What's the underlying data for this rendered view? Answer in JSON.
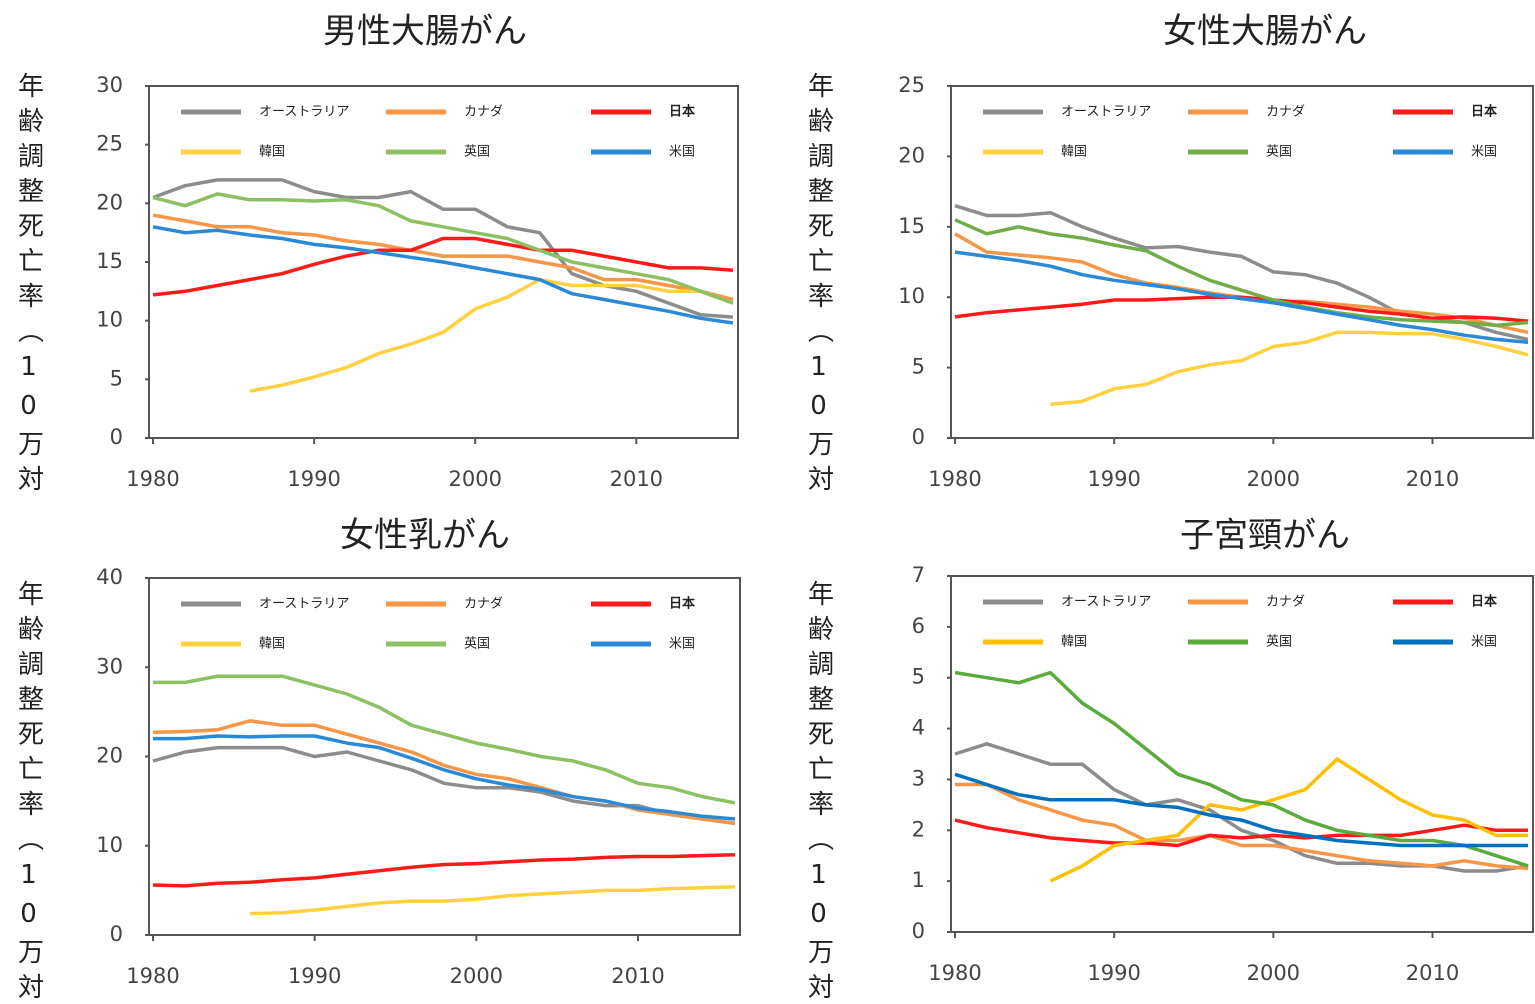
{
  "chart_data": [
    {
      "type": "line",
      "title": "男性大腸がん",
      "ylabel": "年齢調整死亡率（10万対",
      "x": [
        1980,
        1982,
        1984,
        1986,
        1988,
        1990,
        1992,
        1994,
        1996,
        1998,
        2000,
        2002,
        2004,
        2006,
        2008,
        2010,
        2012,
        2014,
        2016
      ],
      "xlim": [
        1980,
        2016
      ],
      "xticks": [
        1980,
        1990,
        2000,
        2010
      ],
      "ylim": [
        0,
        30
      ],
      "yticks": [
        0,
        5,
        10,
        15,
        20,
        25,
        30
      ],
      "series": [
        {
          "name": "オーストラリア",
          "color": "#8c8c8c",
          "values": [
            20.5,
            21.5,
            22,
            22,
            22,
            21,
            20.5,
            20.5,
            21,
            19.5,
            19.5,
            18,
            17.5,
            14,
            13,
            12.5,
            11.5,
            10.5,
            10.3
          ]
        },
        {
          "name": "カナダ",
          "color": "#f79646",
          "values": [
            19,
            18.5,
            18,
            18,
            17.5,
            17.3,
            16.8,
            16.5,
            16,
            15.5,
            15.5,
            15.5,
            15,
            14.5,
            13.5,
            13.5,
            13,
            12.5,
            11.8
          ]
        },
        {
          "name": "日本",
          "color": "#ff1a1a",
          "values": [
            12.2,
            12.5,
            13,
            13.5,
            14,
            14.8,
            15.5,
            16,
            16,
            17,
            17,
            16.5,
            16,
            16,
            15.5,
            15,
            14.5,
            14.5,
            14.3
          ]
        },
        {
          "name": "韓国",
          "color": "#ffd040",
          "values": [
            null,
            null,
            null,
            4,
            4.5,
            5.2,
            6,
            7.2,
            8,
            9,
            11,
            12,
            13.5,
            13,
            13,
            13,
            12.5,
            12.5,
            11.5
          ]
        },
        {
          "name": "英国",
          "color": "#8cc163",
          "values": [
            20.5,
            19.8,
            20.8,
            20.3,
            20.3,
            20.2,
            20.3,
            19.8,
            18.5,
            18,
            17.5,
            17,
            16,
            15,
            14.5,
            14,
            13.5,
            12.5,
            11.5
          ]
        },
        {
          "name": "米国",
          "color": "#2a8ad8",
          "values": [
            18,
            17.5,
            17.7,
            17.3,
            17,
            16.5,
            16.2,
            15.8,
            15.4,
            15,
            14.5,
            14,
            13.5,
            12.3,
            11.8,
            11.3,
            10.8,
            10.2,
            9.8
          ]
        }
      ]
    },
    {
      "type": "line",
      "title": "女性大腸がん",
      "ylabel": "年齢調整死亡率（10万対",
      "x": [
        1980,
        1982,
        1984,
        1986,
        1988,
        1990,
        1992,
        1994,
        1996,
        1998,
        2000,
        2002,
        2004,
        2006,
        2008,
        2010,
        2012,
        2014,
        2016
      ],
      "xlim": [
        1980,
        2016
      ],
      "xticks": [
        1980,
        1990,
        2000,
        2010
      ],
      "ylim": [
        0,
        25
      ],
      "yticks": [
        0,
        5,
        10,
        15,
        20,
        25
      ],
      "series": [
        {
          "name": "オーストラリア",
          "color": "#8c8c8c",
          "values": [
            16.5,
            15.8,
            15.8,
            16,
            15,
            14.2,
            13.5,
            13.6,
            13.2,
            12.9,
            11.8,
            11.6,
            11,
            10,
            8.8,
            8.5,
            8.2,
            7.5,
            7
          ]
        },
        {
          "name": "カナダ",
          "color": "#f79646",
          "values": [
            14.5,
            13.2,
            13,
            12.8,
            12.5,
            11.6,
            11,
            10.7,
            10.3,
            10,
            9.7,
            9.7,
            9.5,
            9.3,
            9,
            8.8,
            8.5,
            8,
            7.5
          ]
        },
        {
          "name": "日本",
          "color": "#ff1a1a",
          "values": [
            8.6,
            8.9,
            9.1,
            9.3,
            9.5,
            9.8,
            9.8,
            9.9,
            10,
            10,
            9.8,
            9.6,
            9.3,
            9,
            8.8,
            8.5,
            8.6,
            8.5,
            8.3
          ]
        },
        {
          "name": "韓国",
          "color": "#ffd040",
          "values": [
            null,
            null,
            null,
            2.4,
            2.6,
            3.5,
            3.8,
            4.7,
            5.2,
            5.5,
            6.5,
            6.8,
            7.5,
            7.5,
            7.4,
            7.4,
            7,
            6.5,
            5.9
          ]
        },
        {
          "name": "英国",
          "color": "#70ad47",
          "values": [
            15.5,
            14.5,
            15,
            14.5,
            14.2,
            13.7,
            13.3,
            12.2,
            11.2,
            10.5,
            9.8,
            9.3,
            8.9,
            8.6,
            8.4,
            8.3,
            8.2,
            8,
            8.2
          ]
        },
        {
          "name": "米国",
          "color": "#2a8ad8",
          "values": [
            13.2,
            12.9,
            12.6,
            12.2,
            11.6,
            11.2,
            10.9,
            10.6,
            10.2,
            9.9,
            9.6,
            9.2,
            8.8,
            8.4,
            8,
            7.7,
            7.3,
            7,
            6.8
          ]
        }
      ]
    },
    {
      "type": "line",
      "title": "女性乳がん",
      "ylabel": "年齢調整死亡率（10万対",
      "x": [
        1980,
        1982,
        1984,
        1986,
        1988,
        1990,
        1992,
        1994,
        1996,
        1998,
        2000,
        2002,
        2004,
        2006,
        2008,
        2010,
        2012,
        2014,
        2016
      ],
      "xlim": [
        1980,
        2016
      ],
      "xticks": [
        1980,
        1990,
        2000,
        2010
      ],
      "ylim": [
        0,
        40
      ],
      "yticks": [
        0,
        10,
        20,
        30,
        40
      ],
      "series": [
        {
          "name": "オーストラリア",
          "color": "#8c8c8c",
          "values": [
            19.5,
            20.5,
            21,
            21,
            21,
            20,
            20.5,
            19.5,
            18.5,
            17,
            16.5,
            16.5,
            16,
            15,
            14.5,
            14.5,
            13.5,
            13,
            12.5
          ]
        },
        {
          "name": "カナダ",
          "color": "#f79646",
          "values": [
            22.7,
            22.8,
            23,
            24,
            23.5,
            23.5,
            22.5,
            21.5,
            20.5,
            19,
            18,
            17.5,
            16.5,
            15.5,
            15,
            14,
            13.5,
            13,
            12.5
          ]
        },
        {
          "name": "日本",
          "color": "#ff1a1a",
          "values": [
            5.6,
            5.5,
            5.8,
            5.9,
            6.2,
            6.4,
            6.8,
            7.2,
            7.6,
            7.9,
            8,
            8.2,
            8.4,
            8.5,
            8.7,
            8.8,
            8.8,
            8.9,
            9
          ]
        },
        {
          "name": "韓国",
          "color": "#ffd040",
          "values": [
            null,
            null,
            null,
            2.4,
            2.5,
            2.8,
            3.2,
            3.6,
            3.8,
            3.8,
            4,
            4.4,
            4.6,
            4.8,
            5,
            5,
            5.2,
            5.3,
            5.4
          ]
        },
        {
          "name": "英国",
          "color": "#8cc163",
          "values": [
            28.3,
            28.3,
            29,
            29,
            29,
            28,
            27,
            25.5,
            23.5,
            22.5,
            21.5,
            20.8,
            20,
            19.5,
            18.5,
            17,
            16.5,
            15.5,
            14.8
          ]
        },
        {
          "name": "米国",
          "color": "#2a8ad8",
          "values": [
            22,
            22,
            22.3,
            22.2,
            22.3,
            22.3,
            21.5,
            21,
            19.8,
            18.5,
            17.5,
            16.8,
            16.3,
            15.5,
            15,
            14.2,
            13.8,
            13.3,
            13
          ]
        }
      ]
    },
    {
      "type": "line",
      "title": "子宮頸がん",
      "ylabel": "年齢調整死亡率（10万対",
      "x": [
        1980,
        1982,
        1984,
        1986,
        1988,
        1990,
        1992,
        1994,
        1996,
        1998,
        2000,
        2002,
        2004,
        2006,
        2008,
        2010,
        2012,
        2014,
        2016
      ],
      "xlim": [
        1980,
        2016
      ],
      "xticks": [
        1980,
        1990,
        2000,
        2010
      ],
      "ylim": [
        0,
        7
      ],
      "yticks": [
        0,
        1,
        2,
        3,
        4,
        5,
        6,
        7
      ],
      "series": [
        {
          "name": "オーストラリア",
          "color": "#8c8c8c",
          "values": [
            3.5,
            3.7,
            3.5,
            3.3,
            3.3,
            2.8,
            2.5,
            2.6,
            2.4,
            2,
            1.8,
            1.5,
            1.35,
            1.35,
            1.3,
            1.3,
            1.2,
            1.2,
            1.3
          ]
        },
        {
          "name": "カナダ",
          "color": "#f79646",
          "values": [
            2.9,
            2.9,
            2.6,
            2.4,
            2.2,
            2.1,
            1.8,
            1.8,
            1.9,
            1.7,
            1.7,
            1.6,
            1.5,
            1.4,
            1.35,
            1.3,
            1.4,
            1.3,
            1.25
          ]
        },
        {
          "name": "日本",
          "color": "#ff1a1a",
          "values": [
            2.2,
            2.05,
            1.95,
            1.85,
            1.8,
            1.75,
            1.75,
            1.7,
            1.9,
            1.85,
            1.9,
            1.85,
            1.9,
            1.9,
            1.9,
            2,
            2.1,
            2,
            2
          ]
        },
        {
          "name": "韓国",
          "color": "#ffc000",
          "values": [
            null,
            null,
            null,
            1,
            1.3,
            1.7,
            1.8,
            1.9,
            2.5,
            2.4,
            2.6,
            2.8,
            3.4,
            3,
            2.6,
            2.3,
            2.2,
            1.9,
            1.9
          ]
        },
        {
          "name": "英国",
          "color": "#5aab3c",
          "values": [
            5.1,
            5,
            4.9,
            5.1,
            4.5,
            4.1,
            3.6,
            3.1,
            2.9,
            2.6,
            2.5,
            2.2,
            2,
            1.9,
            1.8,
            1.8,
            1.7,
            1.5,
            1.3
          ]
        },
        {
          "name": "米国",
          "color": "#0070c0",
          "values": [
            3.1,
            2.9,
            2.7,
            2.6,
            2.6,
            2.6,
            2.5,
            2.45,
            2.3,
            2.2,
            2.0,
            1.9,
            1.8,
            1.75,
            1.7,
            1.7,
            1.7,
            1.7,
            1.7
          ]
        }
      ]
    }
  ]
}
